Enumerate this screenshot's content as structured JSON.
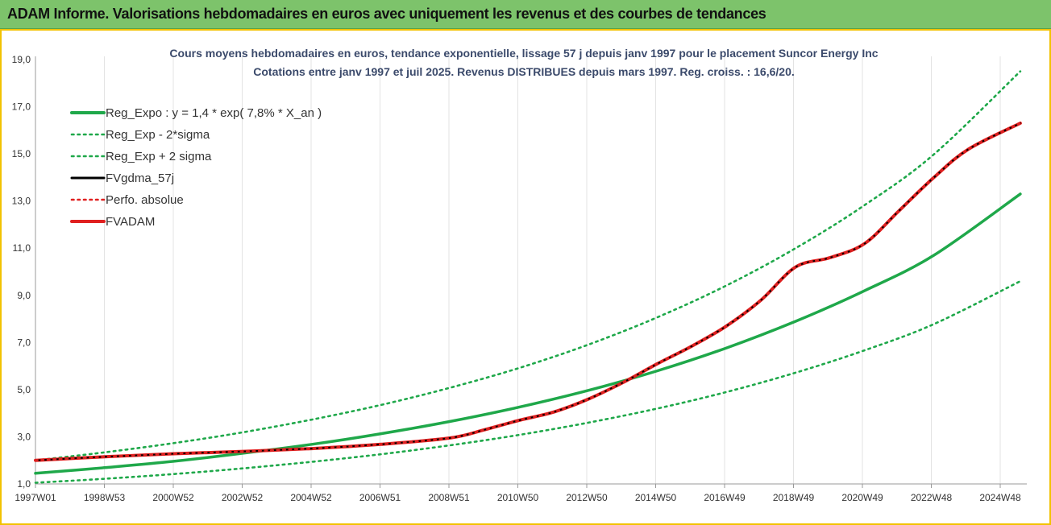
{
  "header": {
    "title": "ADAM Informe. Valorisations hebdomadaires en euros avec uniquement les revenus et des courbes de tendances",
    "background": "#7dc36b",
    "frame_color": "#f2c200"
  },
  "chart_data": {
    "type": "line",
    "title": "Cours moyens hebdomadaires en euros, tendance exponentielle, lissage 57 j depuis janv 1997  pour le placement Suncor Energy Inc",
    "subtitle": "Cotations entre janv 1997 et juil 2025. Revenus DISTRIBUES depuis mars 1997. Reg. croiss. : 16,6/20.",
    "xlabel": "",
    "ylabel": "",
    "ylim": [
      1,
      19
    ],
    "yticks": [
      "1,0",
      "3,0",
      "5,0",
      "7,0",
      "9,0",
      "11,0",
      "13,0",
      "15,0",
      "17,0",
      "19,0"
    ],
    "x_tick_labels": [
      "1997W01",
      "1998W53",
      "2000W52",
      "2002W52",
      "2004W52",
      "2006W51",
      "2008W51",
      "2010W50",
      "2012W50",
      "2014W50",
      "2016W49",
      "2018W49",
      "2020W49",
      "2022W48",
      "2024W48"
    ],
    "x_range_years": [
      1997.0,
      2025.55
    ],
    "grid": "vertical",
    "legend_position": "top-left",
    "series": [
      {
        "name": "Reg_Expo : y = 1,4 * exp( 7,8% *  X_an )",
        "style": "solid",
        "color": "#1fa84a",
        "x": [
          1997,
          1999,
          2001,
          2003,
          2005,
          2007,
          2009,
          2011,
          2013,
          2015,
          2017,
          2019,
          2021,
          2023,
          2025.5
        ],
        "y": [
          1.45,
          1.69,
          1.96,
          2.3,
          2.68,
          3.13,
          3.65,
          4.26,
          4.97,
          5.8,
          6.77,
          7.9,
          9.2,
          10.7,
          13.3
        ]
      },
      {
        "name": "Reg_Exp - 2*sigma",
        "style": "dotted",
        "color": "#1fa84a",
        "x": [
          1997,
          1999,
          2001,
          2003,
          2005,
          2007,
          2009,
          2011,
          2013,
          2015,
          2017,
          2019,
          2021,
          2023,
          2025.5
        ],
        "y": [
          1.05,
          1.22,
          1.42,
          1.66,
          1.94,
          2.26,
          2.64,
          3.08,
          3.6,
          4.2,
          4.9,
          5.72,
          6.67,
          7.78,
          9.6
        ]
      },
      {
        "name": "Reg_Exp + 2 sigma",
        "style": "dotted",
        "color": "#1fa84a",
        "x": [
          1997,
          1999,
          2001,
          2003,
          2005,
          2007,
          2009,
          2011,
          2013,
          2015,
          2017,
          2019,
          2021,
          2023,
          2025.5
        ],
        "y": [
          2.0,
          2.34,
          2.73,
          3.19,
          3.73,
          4.35,
          5.08,
          5.92,
          6.91,
          8.07,
          9.42,
          11.0,
          12.83,
          14.98,
          18.5
        ]
      },
      {
        "name": "FVgdma_57j",
        "style": "solid",
        "color": "#000000",
        "x": [
          1997,
          1999,
          2001,
          2003,
          2005,
          2007,
          2009,
          2010,
          2011,
          2012,
          2013,
          2014,
          2015,
          2016,
          2017,
          2018,
          2019,
          2020,
          2021,
          2022,
          2023,
          2024,
          2025.5
        ],
        "y": [
          2.0,
          2.15,
          2.28,
          2.38,
          2.5,
          2.68,
          2.95,
          3.3,
          3.7,
          4.05,
          4.6,
          5.3,
          6.1,
          6.85,
          7.7,
          8.8,
          10.2,
          10.6,
          11.2,
          12.6,
          14.0,
          15.2,
          16.3
        ]
      },
      {
        "name": "Perfo. absolue",
        "style": "dotted",
        "color": "#e02020",
        "x": [
          1997,
          1999,
          2001,
          2003,
          2005,
          2007,
          2009,
          2010,
          2011,
          2012,
          2013,
          2014,
          2015,
          2016,
          2017,
          2018,
          2019,
          2020,
          2021,
          2022,
          2023,
          2024,
          2025.5
        ],
        "y": [
          2.0,
          2.15,
          2.28,
          2.38,
          2.5,
          2.68,
          2.95,
          3.3,
          3.7,
          4.05,
          4.6,
          5.3,
          6.1,
          6.85,
          7.7,
          8.8,
          10.2,
          10.6,
          11.2,
          12.6,
          14.0,
          15.2,
          16.3
        ]
      },
      {
        "name": "FVADAM",
        "style": "solid",
        "color": "#e02020",
        "x": [
          1997,
          1999,
          2001,
          2003,
          2005,
          2007,
          2009,
          2010,
          2011,
          2012,
          2013,
          2014,
          2015,
          2016,
          2017,
          2018,
          2019,
          2020,
          2021,
          2022,
          2023,
          2024,
          2025.5
        ],
        "y": [
          2.0,
          2.15,
          2.28,
          2.38,
          2.5,
          2.68,
          2.95,
          3.3,
          3.7,
          4.05,
          4.6,
          5.3,
          6.1,
          6.85,
          7.7,
          8.8,
          10.2,
          10.6,
          11.2,
          12.6,
          14.0,
          15.2,
          16.3
        ]
      }
    ]
  }
}
